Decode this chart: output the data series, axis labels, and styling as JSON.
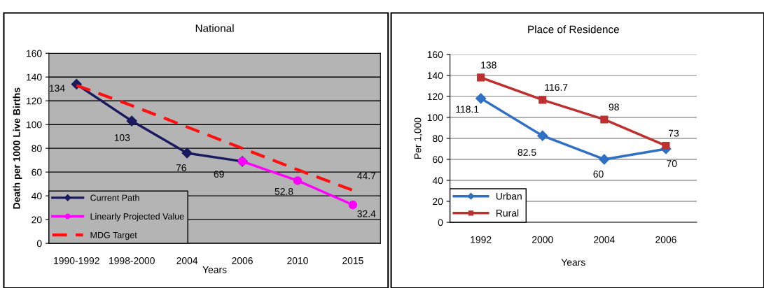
{
  "chart_data": [
    {
      "type": "line",
      "title": "National",
      "xlabel": "Years",
      "ylabel": "Death per 1000 Live Births",
      "categories": [
        "1990-1992",
        "1998-2000",
        "2004",
        "2006",
        "2010",
        "2015"
      ],
      "ylim": [
        0,
        160
      ],
      "yticks": [
        0,
        20,
        40,
        60,
        80,
        100,
        120,
        140,
        160
      ],
      "grid": "y",
      "legend": "bottom left",
      "series": [
        {
          "name": "Current Path",
          "color": "#1a1a5e",
          "marker": "diamond",
          "line_style": "solid",
          "values": [
            134,
            103,
            76,
            69,
            null,
            null
          ],
          "value_labels": [
            "134",
            "103",
            "76",
            "69",
            null,
            null
          ]
        },
        {
          "name": "Linearly Projected Value",
          "color": "#ff00ff",
          "marker": "circle",
          "line_style": "solid",
          "values": [
            null,
            null,
            null,
            69,
            52.8,
            32.4
          ],
          "value_labels": [
            null,
            null,
            null,
            null,
            "52.8",
            "32.4"
          ]
        },
        {
          "name": "MDG Target",
          "color": "#ff1010",
          "marker": "none",
          "line_style": "dashed",
          "values": [
            133,
            116,
            98,
            80,
            62,
            44.7
          ],
          "value_labels": [
            null,
            null,
            null,
            null,
            null,
            "44.7"
          ]
        }
      ]
    },
    {
      "type": "line",
      "title": "Place of Residence",
      "xlabel": "Years",
      "ylabel": "Per 1,000",
      "categories": [
        "1992",
        "2000",
        "2004",
        "2006"
      ],
      "ylim": [
        0,
        160
      ],
      "yticks": [
        0,
        20,
        40,
        60,
        80,
        100,
        120,
        140,
        160
      ],
      "grid": "y",
      "legend": "bottom left",
      "series": [
        {
          "name": "Urban",
          "color": "#2f6fc4",
          "marker": "diamond",
          "line_style": "solid",
          "values": [
            118.1,
            82.5,
            60,
            70
          ],
          "value_labels": [
            "118.1",
            "82.5",
            "60",
            "70"
          ]
        },
        {
          "name": "Rural",
          "color": "#be3030",
          "marker": "square",
          "line_style": "solid",
          "values": [
            138,
            116.7,
            98,
            73
          ],
          "value_labels": [
            "138",
            "116.7",
            "98",
            "73"
          ]
        }
      ]
    }
  ]
}
